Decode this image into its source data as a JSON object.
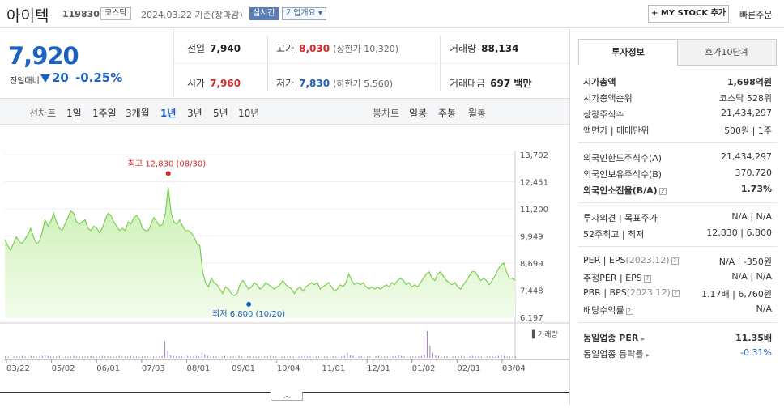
{
  "header": {
    "name": "아이텍",
    "code": "119830",
    "market": "코스닥",
    "asof": "2024.03.22 기준(장마감)",
    "realtime": "실시간",
    "overview": "기업개요",
    "mystock": "+ MY STOCK 추가",
    "quick_order": "빠른주문"
  },
  "price": {
    "current": "7,920",
    "change_label": "전일대비",
    "change": "20",
    "change_rate": "-0.25%"
  },
  "stats": {
    "prev_label": "전일",
    "prev": "7,940",
    "high_label": "고가",
    "high": "8,030",
    "upper_limit": "(상한가 10,320)",
    "volume_label": "거래량",
    "volume": "88,134",
    "open_label": "시가",
    "open": "7,960",
    "low_label": "저가",
    "low": "7,830",
    "lower_limit": "(하한가 5,560)",
    "amount_label": "거래대금",
    "amount": "697 백만"
  },
  "tabs": {
    "line_label": "선차트",
    "periods": [
      "1일",
      "1주일",
      "3개월",
      "1년",
      "3년",
      "5년",
      "10년"
    ],
    "active": "1년",
    "candle_label": "봉차트",
    "candle": [
      "일봉",
      "주봉",
      "월봉"
    ]
  },
  "chart_data": {
    "type": "area",
    "yticks": [
      "13,702",
      "12,451",
      "11,200",
      "9,949",
      "8,699",
      "7,448",
      "6,197"
    ],
    "ylim": [
      6197,
      13702
    ],
    "xticks": [
      "03/22",
      "05/02",
      "06/01",
      "07/03",
      "08/01",
      "09/01",
      "10/04",
      "11/01",
      "12/01",
      "01/02",
      "02/01",
      "03/04"
    ],
    "high_annotation": "최고 12,830 (08/30)",
    "low_annotation": "최저 6,800 (10/20)",
    "volume_label": "거래량",
    "price_series": [
      9800,
      9500,
      9300,
      9600,
      9900,
      9700,
      9600,
      9800,
      10000,
      10300,
      9900,
      9600,
      9700,
      10100,
      10700,
      10400,
      10600,
      11000,
      10600,
      10300,
      10200,
      10500,
      10800,
      11100,
      11000,
      10600,
      10500,
      10600,
      10700,
      10300,
      10200,
      10400,
      10300,
      10100,
      10300,
      10700,
      11000,
      10900,
      10600,
      10400,
      10200,
      10300,
      10200,
      10600,
      10500,
      10800,
      10900,
      10700,
      10300,
      10200,
      10200,
      10500,
      10800,
      10600,
      10400,
      10500,
      11000,
      12200,
      11000,
      10600,
      10500,
      10700,
      10400,
      10200,
      10200,
      10100,
      9900,
      9600,
      9500,
      8300,
      7800,
      7600,
      8000,
      7800,
      7700,
      7500,
      7300,
      7600,
      7500,
      7300,
      7200,
      7300,
      7700,
      7900,
      7700,
      7500,
      7600,
      7800,
      7700,
      7500,
      7600,
      7800,
      7700,
      7600,
      7500,
      7600,
      7700,
      7900,
      7700,
      7600,
      7500,
      7300,
      7500,
      7600,
      7400,
      7600,
      7700,
      7800,
      7700,
      7800,
      7500,
      7600,
      7700,
      7800,
      7600,
      7400,
      7500,
      7700,
      7600,
      7800,
      8200,
      7900,
      7700,
      7800,
      7700,
      7800,
      7600,
      7500,
      7600,
      7500,
      7600,
      7500,
      7600,
      7700,
      7600,
      7800,
      7700,
      7900,
      8000,
      7900,
      7700,
      7800,
      7600,
      7700,
      7600,
      7800,
      8000,
      8200,
      8300,
      8000,
      7900,
      8200,
      8300,
      8100,
      7900,
      7800,
      7700,
      7800,
      7600,
      7500,
      7700,
      7900,
      8100,
      8300,
      8300,
      8100,
      7900,
      8000,
      7900,
      7700,
      7900,
      8100,
      8400,
      8600,
      8700,
      8300,
      8000,
      8000,
      7920
    ],
    "volume_series": [
      2,
      2,
      3,
      2,
      2,
      2,
      3,
      2,
      2,
      3,
      2,
      2,
      2,
      3,
      4,
      3,
      2,
      2,
      2,
      3,
      2,
      2,
      2,
      2,
      3,
      2,
      2,
      2,
      2,
      2,
      3,
      2,
      2,
      2,
      3,
      2,
      2,
      2,
      2,
      2,
      3,
      2,
      2,
      2,
      3,
      2,
      2,
      2,
      2,
      2,
      2,
      2,
      2,
      2,
      2,
      3,
      25,
      10,
      4,
      3,
      2,
      2,
      2,
      2,
      3,
      2,
      2,
      3,
      2,
      8,
      5,
      3,
      2,
      2,
      2,
      2,
      2,
      3,
      2,
      2,
      2,
      2,
      3,
      2,
      2,
      2,
      2,
      2,
      2,
      2,
      2,
      2,
      2,
      3,
      2,
      2,
      2,
      2,
      2,
      2,
      2,
      2,
      2,
      2,
      2,
      3,
      2,
      2,
      2,
      2,
      2,
      2,
      2,
      2,
      2,
      2,
      2,
      2,
      2,
      3,
      8,
      4,
      3,
      2,
      2,
      2,
      2,
      2,
      2,
      2,
      2,
      3,
      2,
      2,
      2,
      2,
      2,
      2,
      4,
      3,
      2,
      2,
      2,
      2,
      2,
      2,
      3,
      5,
      40,
      18,
      8,
      4,
      3,
      2,
      2,
      2,
      2,
      2,
      2,
      2,
      3,
      2,
      2,
      2,
      3,
      2,
      2,
      2,
      2,
      2,
      2,
      2,
      2,
      3,
      4,
      3,
      2,
      2,
      2,
      2
    ]
  },
  "invest": {
    "tab_on": "투자정보",
    "tab_off": "호가10단계",
    "rows1": [
      {
        "k": "시가총액",
        "v": "1,698억원",
        "bold": true
      },
      {
        "k": "시가총액순위",
        "v": "코스닥 528위"
      },
      {
        "k": "상장주식수",
        "v": "21,434,297"
      },
      {
        "k": "액면가 | 매매단위",
        "v": "500원 | 1주"
      }
    ],
    "rows2": [
      {
        "k": "외국인한도주식수(A)",
        "v": "21,434,297"
      },
      {
        "k": "외국인보유주식수(B)",
        "v": "370,720"
      },
      {
        "k": "외국인소진율(B/A)",
        "v": "1.73%",
        "bold": true
      }
    ],
    "rows3": [
      {
        "k": "투자의견 | 목표주가",
        "v": "N/A | N/A"
      },
      {
        "k": "52주최고 | 최저",
        "v": "12,830 | 6,800"
      }
    ],
    "per_label": "PER | EPS",
    "per_eps_date": "(2023.12)",
    "per_val": "N/A | -350원",
    "eper_label": "추정PER | EPS",
    "eper_val": "N/A | N/A",
    "pbr_label": "PBR | BPS",
    "pbr_date": "(2023.12)",
    "pbr_val": "1.17배 | 6,760원",
    "div_label": "배당수익률",
    "div_val": "N/A",
    "ind_per_label": "동일업종 PER",
    "ind_per_val": "11.35배",
    "ind_rate_label": "동일업종 등락률",
    "ind_rate_val": "-0.31%"
  },
  "collapse_icon": "chevron-up-icon",
  "colors": {
    "accent": "#1d61c2",
    "up": "#d62828",
    "area": "#d9f5c4",
    "line": "#7bcf52"
  }
}
